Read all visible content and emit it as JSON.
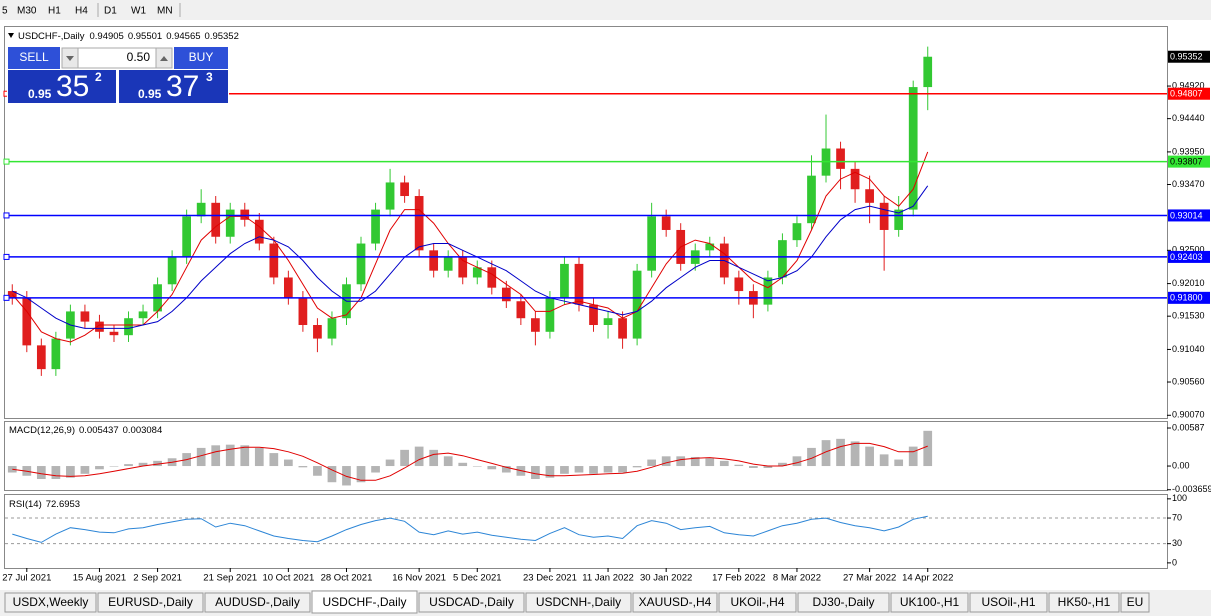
{
  "toolbar": {
    "timeframes": [
      "5",
      "M30",
      "H1",
      "H4",
      "D1",
      "W1",
      "MN"
    ]
  },
  "trade_panel": {
    "sell": "SELL",
    "lot": "0.50",
    "buy": "BUY",
    "sell_big": "0.95",
    "sell_digits": "35",
    "sell_point": "2",
    "buy_big": "0.95",
    "buy_digits": "37",
    "buy_point": "3"
  },
  "chart_data": {
    "type": "candlestick",
    "title": "USDCHF-,Daily",
    "up_color": "#32c832",
    "down_color": "#e01e1e",
    "categories": [
      null,
      "27 Jul 2021",
      null,
      null,
      null,
      null,
      "15 Aug 2021",
      null,
      null,
      null,
      "2 Sep 2021",
      null,
      null,
      null,
      null,
      "21 Sep 2021",
      null,
      null,
      null,
      "10 Oct 2021",
      null,
      null,
      null,
      "28 Oct 2021",
      null,
      null,
      null,
      null,
      "16 Nov 2021",
      null,
      null,
      null,
      "5 Dec 2021",
      null,
      null,
      null,
      null,
      "23 Dec 2021",
      null,
      null,
      null,
      "11 Jan 2022",
      null,
      null,
      null,
      "30 Jan 2022",
      null,
      null,
      null,
      null,
      "17 Feb 2022",
      null,
      null,
      null,
      "8 Mar 2022",
      null,
      null,
      null,
      null,
      "27 Mar 2022",
      null,
      null,
      null,
      "14 Apr 2022"
    ],
    "ohlc": [
      [
        0.919,
        0.92,
        0.917,
        0.918
      ],
      [
        0.918,
        0.919,
        0.91,
        0.911
      ],
      [
        0.911,
        0.912,
        0.9065,
        0.9075
      ],
      [
        0.9075,
        0.913,
        0.9065,
        0.912
      ],
      [
        0.912,
        0.917,
        0.911,
        0.916
      ],
      [
        0.916,
        0.917,
        0.9135,
        0.9145
      ],
      [
        0.9145,
        0.9155,
        0.912,
        0.913
      ],
      [
        0.913,
        0.914,
        0.9115,
        0.9125
      ],
      [
        0.9125,
        0.916,
        0.9115,
        0.915
      ],
      [
        0.915,
        0.917,
        0.914,
        0.916
      ],
      [
        0.916,
        0.921,
        0.915,
        0.92
      ],
      [
        0.92,
        0.925,
        0.919,
        0.924
      ],
      [
        0.924,
        0.931,
        0.923,
        0.93
      ],
      [
        0.93,
        0.934,
        0.929,
        0.932
      ],
      [
        0.932,
        0.933,
        0.926,
        0.927
      ],
      [
        0.927,
        0.932,
        0.926,
        0.931
      ],
      [
        0.931,
        0.932,
        0.9285,
        0.9295
      ],
      [
        0.9295,
        0.9305,
        0.925,
        0.926
      ],
      [
        0.926,
        0.927,
        0.92,
        0.921
      ],
      [
        0.921,
        0.922,
        0.917,
        0.918
      ],
      [
        0.918,
        0.919,
        0.913,
        0.914
      ],
      [
        0.914,
        0.915,
        0.91,
        0.912
      ],
      [
        0.912,
        0.916,
        0.911,
        0.915
      ],
      [
        0.915,
        0.921,
        0.914,
        0.92
      ],
      [
        0.92,
        0.927,
        0.919,
        0.926
      ],
      [
        0.926,
        0.932,
        0.925,
        0.931
      ],
      [
        0.931,
        0.937,
        0.93,
        0.935
      ],
      [
        0.935,
        0.936,
        0.932,
        0.933
      ],
      [
        0.933,
        0.934,
        0.924,
        0.925
      ],
      [
        0.925,
        0.926,
        0.921,
        0.922
      ],
      [
        0.922,
        0.925,
        0.921,
        0.924
      ],
      [
        0.924,
        0.925,
        0.92,
        0.921
      ],
      [
        0.921,
        0.9235,
        0.92,
        0.9225
      ],
      [
        0.9225,
        0.9235,
        0.9185,
        0.9195
      ],
      [
        0.9195,
        0.9205,
        0.9165,
        0.9175
      ],
      [
        0.9175,
        0.9185,
        0.914,
        0.915
      ],
      [
        0.915,
        0.916,
        0.911,
        0.913
      ],
      [
        0.913,
        0.919,
        0.912,
        0.918
      ],
      [
        0.918,
        0.924,
        0.917,
        0.923
      ],
      [
        0.923,
        0.924,
        0.916,
        0.917
      ],
      [
        0.917,
        0.918,
        0.913,
        0.914
      ],
      [
        0.914,
        0.916,
        0.912,
        0.915
      ],
      [
        0.915,
        0.916,
        0.9105,
        0.912
      ],
      [
        0.912,
        0.923,
        0.911,
        0.922
      ],
      [
        0.922,
        0.932,
        0.921,
        0.93
      ],
      [
        0.93,
        0.931,
        0.927,
        0.928
      ],
      [
        0.928,
        0.929,
        0.922,
        0.923
      ],
      [
        0.923,
        0.926,
        0.922,
        0.925
      ],
      [
        0.925,
        0.927,
        0.924,
        0.926
      ],
      [
        0.926,
        0.927,
        0.92,
        0.921
      ],
      [
        0.921,
        0.922,
        0.917,
        0.919
      ],
      [
        0.919,
        0.92,
        0.915,
        0.917
      ],
      [
        0.917,
        0.922,
        0.916,
        0.921
      ],
      [
        0.921,
        0.9275,
        0.92,
        0.9265
      ],
      [
        0.9265,
        0.93,
        0.9255,
        0.929
      ],
      [
        0.929,
        0.939,
        0.928,
        0.936
      ],
      [
        0.936,
        0.945,
        0.935,
        0.94
      ],
      [
        0.94,
        0.941,
        0.934,
        0.937
      ],
      [
        0.937,
        0.938,
        0.932,
        0.934
      ],
      [
        0.934,
        0.936,
        0.929,
        0.932
      ],
      [
        0.932,
        0.933,
        0.922,
        0.928
      ],
      [
        0.928,
        0.933,
        0.927,
        0.931
      ],
      [
        0.931,
        0.95,
        0.93,
        0.94905
      ],
      [
        0.94905,
        0.95501,
        0.94565,
        0.95352
      ]
    ],
    "ma_series": [
      {
        "color": "#e00000",
        "values": [
          0.9185,
          0.916,
          0.913,
          0.912,
          0.9115,
          0.9125,
          0.914,
          0.914,
          0.914,
          0.914,
          0.916,
          0.9185,
          0.9225,
          0.9265,
          0.9285,
          0.93,
          0.93,
          0.9285,
          0.9265,
          0.9235,
          0.92,
          0.9165,
          0.915,
          0.9155,
          0.918,
          0.923,
          0.928,
          0.931,
          0.931,
          0.929,
          0.926,
          0.9235,
          0.9225,
          0.9215,
          0.92,
          0.9185,
          0.916,
          0.916,
          0.917,
          0.9175,
          0.917,
          0.9165,
          0.915,
          0.916,
          0.9195,
          0.923,
          0.9255,
          0.9265,
          0.926,
          0.9245,
          0.9225,
          0.9205,
          0.9195,
          0.921,
          0.9235,
          0.928,
          0.933,
          0.9355,
          0.9365,
          0.9355,
          0.933,
          0.9315,
          0.934,
          0.9395
        ]
      },
      {
        "color": "#0000c8",
        "values": [
          0.919,
          0.918,
          0.9165,
          0.915,
          0.914,
          0.9135,
          0.9135,
          0.9135,
          0.9135,
          0.914,
          0.9145,
          0.916,
          0.918,
          0.9205,
          0.9225,
          0.9245,
          0.926,
          0.927,
          0.9265,
          0.9255,
          0.9235,
          0.921,
          0.919,
          0.9175,
          0.9175,
          0.919,
          0.9215,
          0.924,
          0.9255,
          0.926,
          0.926,
          0.925,
          0.924,
          0.923,
          0.922,
          0.9205,
          0.919,
          0.918,
          0.9175,
          0.917,
          0.9165,
          0.916,
          0.9155,
          0.916,
          0.9175,
          0.9195,
          0.921,
          0.9225,
          0.9235,
          0.9235,
          0.9225,
          0.9215,
          0.9205,
          0.921,
          0.922,
          0.924,
          0.927,
          0.9295,
          0.931,
          0.9315,
          0.931,
          0.9305,
          0.9315,
          0.9345
        ]
      }
    ],
    "ylim": [
      0.9003,
      0.9579
    ],
    "yticks": [
      {
        "value": 0.9492,
        "label": "0.94920"
      },
      {
        "value": 0.9444,
        "label": "0.94440"
      },
      {
        "value": 0.9395,
        "label": "0.93950"
      },
      {
        "value": 0.9347,
        "label": "0.93470"
      },
      {
        "value": 0.925,
        "label": "0.92500"
      },
      {
        "value": 0.9201,
        "label": "0.92010"
      },
      {
        "value": 0.9153,
        "label": "0.91530"
      },
      {
        "value": 0.9104,
        "label": "0.91040"
      },
      {
        "value": 0.9056,
        "label": "0.90560"
      },
      {
        "value": 0.9007,
        "label": "0.90070"
      }
    ],
    "levels": [
      {
        "value": 0.94807,
        "color": "#ff0000"
      },
      {
        "value": 0.93807,
        "color": "#33e633"
      },
      {
        "value": 0.93014,
        "color": "#0000ff"
      },
      {
        "value": 0.92403,
        "color": "#0000ff"
      },
      {
        "value": 0.918,
        "label": "0.91800",
        "color": "#0000ff"
      }
    ],
    "macd": {
      "title": "MACD(12,26,9)",
      "hist_color": "#b4b4b4",
      "signal_color": "#e00000",
      "histogram": [
        -0.001,
        -0.0015,
        -0.002,
        -0.002,
        -0.0018,
        -0.0012,
        -0.0005,
        0,
        0.0003,
        0.0005,
        0.0008,
        0.0012,
        0.002,
        0.0028,
        0.0032,
        0.0033,
        0.0032,
        0.0028,
        0.002,
        0.001,
        -0.0002,
        -0.0015,
        -0.0025,
        -0.003,
        -0.0025,
        -0.001,
        0.001,
        0.0025,
        0.003,
        0.0025,
        0.0015,
        0.0005,
        0,
        -0.0005,
        -0.001,
        -0.0015,
        -0.002,
        -0.0018,
        -0.0012,
        -0.001,
        -0.0012,
        -0.001,
        -0.001,
        -0.0002,
        0.001,
        0.0015,
        0.0015,
        0.0014,
        0.0012,
        0.0008,
        0.0002,
        -0.0003,
        -0.0003,
        0.0005,
        0.0015,
        0.0028,
        0.004,
        0.0042,
        0.0038,
        0.003,
        0.0018,
        0.001,
        0.003,
        0.005437
      ],
      "signal": [
        -0.0005,
        -0.0008,
        -0.0012,
        -0.0015,
        -0.0016,
        -0.0015,
        -0.0012,
        -0.0008,
        -0.0004,
        0,
        0.0003,
        0.0006,
        0.001,
        0.0016,
        0.0022,
        0.0026,
        0.0029,
        0.0029,
        0.0027,
        0.0022,
        0.0015,
        0.0005,
        -0.0006,
        -0.0016,
        -0.0022,
        -0.0022,
        -0.0015,
        -0.0003,
        0.001,
        0.0018,
        0.002,
        0.0016,
        0.001,
        0.0004,
        -0.0002,
        -0.0007,
        -0.0012,
        -0.0015,
        -0.0015,
        -0.0014,
        -0.0013,
        -0.0012,
        -0.0011,
        -0.0008,
        -0.0002,
        0.0005,
        0.001,
        0.0012,
        0.0013,
        0.0011,
        0.0008,
        0.0003,
        0,
        0,
        0.0005,
        0.0012,
        0.0022,
        0.003,
        0.0035,
        0.0035,
        0.003,
        0.0022,
        0.0022,
        0.003084
      ],
      "ylim": [
        -0.0037,
        0.0068
      ],
      "yticks": [
        0.00587,
        {
          "value": 0,
          "label": "0.00"
        },
        -0.003659
      ]
    },
    "rsi": {
      "title": "RSI(14)",
      "color": "#2c85d6",
      "values": [
        45,
        38,
        32,
        45,
        55,
        52,
        48,
        47,
        53,
        55,
        60,
        64,
        68,
        69,
        56,
        62,
        58,
        50,
        42,
        38,
        35,
        33,
        42,
        52,
        60,
        66,
        70,
        65,
        48,
        44,
        50,
        45,
        48,
        43,
        40,
        37,
        35,
        46,
        55,
        44,
        40,
        42,
        38,
        58,
        66,
        62,
        52,
        55,
        57,
        47,
        44,
        42,
        50,
        58,
        62,
        68,
        70,
        63,
        58,
        55,
        50,
        56,
        68,
        72.6953
      ],
      "ylim": [
        -8,
        106
      ],
      "yticks": [
        100,
        70,
        30,
        0
      ]
    }
  },
  "tabs": {
    "items": [
      "USDX,Weekly",
      "EURUSD-,Daily",
      "AUDUSD-,Daily",
      "USDCHF-,Daily",
      "USDCAD-,Daily",
      "USDCNH-,Daily",
      "XAUUSD-,H4",
      "UKOil-,H4",
      "DJ30-,Daily",
      "UK100-,H1",
      "USOil-,H1",
      "HK50-,H1",
      "EU"
    ],
    "active": "USDCHF-,Daily"
  }
}
